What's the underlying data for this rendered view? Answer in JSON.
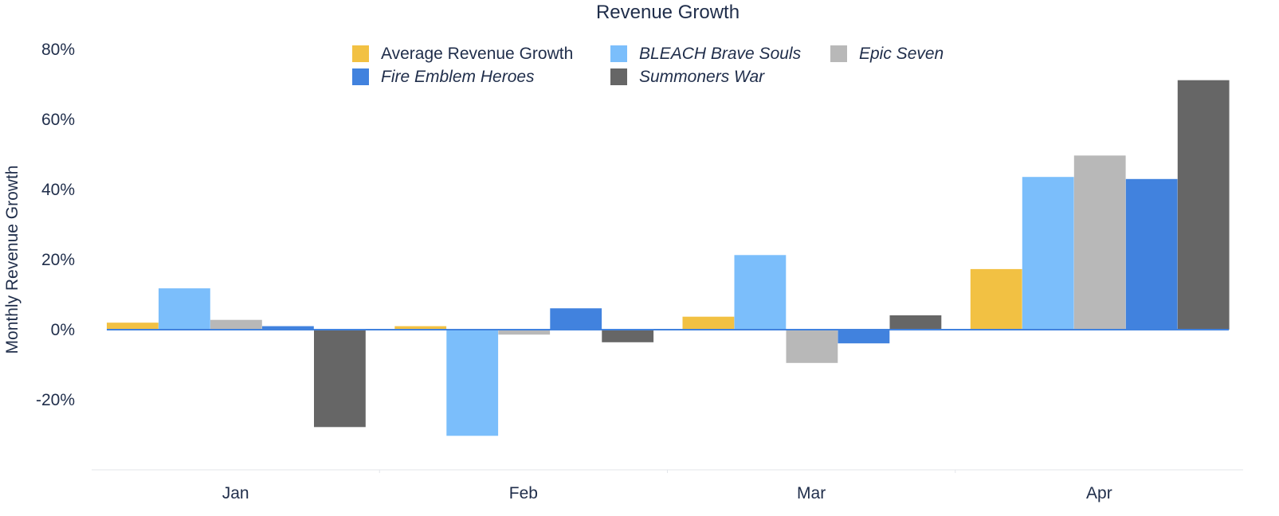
{
  "chart_data": {
    "type": "bar",
    "title": "Revenue Growth",
    "xlabel": "",
    "ylabel": "Monthly Revenue Growth",
    "categories": [
      "Jan",
      "Feb",
      "Mar",
      "Apr"
    ],
    "y_unit": "%",
    "ylim": [
      -40,
      80
    ],
    "yticks": [
      80,
      60,
      40,
      20,
      0,
      -20
    ],
    "grid": false,
    "legend_position": "top",
    "series": [
      {
        "name": "Average Revenue Growth",
        "color": "#f2c143",
        "italic": false,
        "values": [
          2,
          1,
          3.7,
          17.3
        ]
      },
      {
        "name": "BLEACH Brave Souls",
        "color": "#7bbefb",
        "italic": true,
        "values": [
          11.8,
          -30.3,
          21.3,
          43.6
        ]
      },
      {
        "name": "Epic Seven",
        "color": "#b8b8b8",
        "italic": true,
        "values": [
          2.8,
          -1.4,
          -9.5,
          49.7
        ]
      },
      {
        "name": "Fire Emblem Heroes",
        "color": "#4182de",
        "italic": true,
        "values": [
          1,
          6.1,
          -3.9,
          43
        ]
      },
      {
        "name": "Summoners War",
        "color": "#666666",
        "italic": true,
        "values": [
          -27.8,
          -3.6,
          4.1,
          71.2
        ]
      }
    ]
  }
}
